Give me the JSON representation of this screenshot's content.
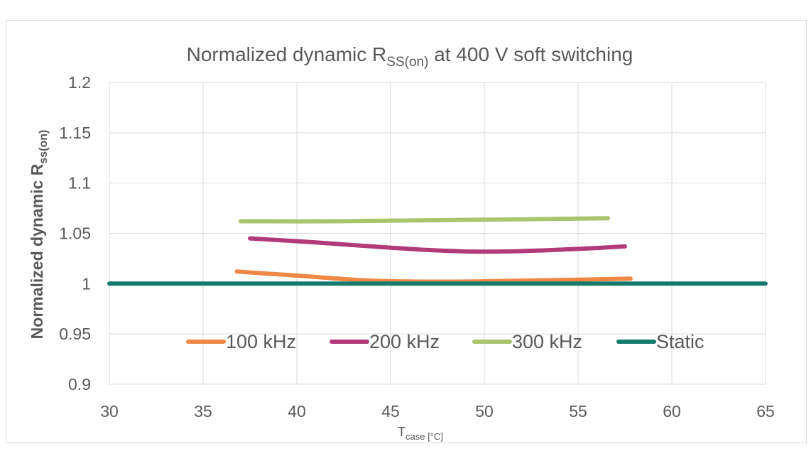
{
  "chart_data": {
    "type": "line",
    "title": {
      "main": "Normalized dynamic R",
      "sub": "SS(on)",
      "tail": " at 400 V soft switching"
    },
    "xlabel": {
      "main": "T",
      "sub": "case [°C]"
    },
    "ylabel": {
      "main": "Normalized dynamic R",
      "sub": "ss(on)"
    },
    "xlim": [
      30,
      65
    ],
    "ylim": [
      0.9,
      1.2
    ],
    "xticks": [
      30,
      35,
      40,
      45,
      50,
      55,
      60,
      65
    ],
    "yticks": [
      0.9,
      0.95,
      1,
      1.05,
      1.1,
      1.15,
      1.2
    ],
    "ytick_labels": [
      "0.9",
      "0.95",
      "1",
      "1.05",
      "1.1",
      "1.15",
      "1.2"
    ],
    "grid": true,
    "legend_position": "bottom-inside",
    "series": [
      {
        "name": "100 kHz",
        "color": "#ee8844",
        "x": [
          36.8,
          40,
          44,
          48,
          52,
          55,
          57.8
        ],
        "y": [
          1.012,
          1.008,
          1.003,
          1.002,
          1.003,
          1.004,
          1.005
        ]
      },
      {
        "name": "200 kHz",
        "color": "#b03a7a",
        "x": [
          37.5,
          41,
          44,
          46.5,
          49,
          51,
          53,
          55.5,
          57.5
        ],
        "y": [
          1.045,
          1.041,
          1.037,
          1.034,
          1.032,
          1.032,
          1.033,
          1.035,
          1.037
        ]
      },
      {
        "name": "300 kHz",
        "color": "#a9c46a",
        "x": [
          37,
          42,
          47,
          52,
          56.6
        ],
        "y": [
          1.062,
          1.062,
          1.063,
          1.064,
          1.065
        ]
      },
      {
        "name": "Static",
        "color": "#157a6e",
        "x": [
          30,
          65
        ],
        "y": [
          1,
          1
        ]
      }
    ]
  }
}
